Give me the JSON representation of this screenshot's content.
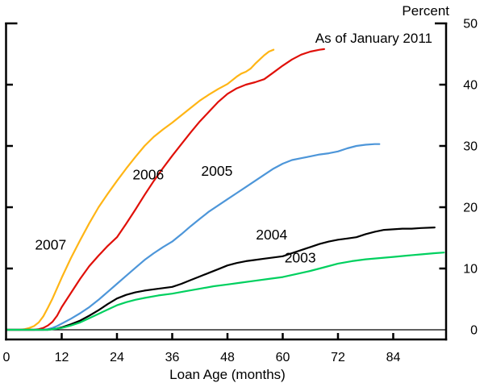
{
  "chart_data": {
    "type": "line",
    "title": "",
    "annotation": "As of January 2011",
    "ylabel": "Percent",
    "xlabel": "Loan Age (months)",
    "xlim": [
      0,
      95.5
    ],
    "ylim": [
      -1.6,
      50
    ],
    "x_ticks": [
      0,
      12,
      24,
      36,
      48,
      60,
      72,
      84
    ],
    "y_ticks": [
      0,
      10,
      20,
      30,
      40,
      50
    ],
    "grid": false,
    "legend": "inline-colored-labels",
    "axis_color": "#000000",
    "series": [
      {
        "name": "2007",
        "color": "#FFB515",
        "label_pos": [
          9.6,
          13.9
        ],
        "points": [
          [
            0,
            0
          ],
          [
            3,
            0
          ],
          [
            4,
            0.1
          ],
          [
            5,
            0.3
          ],
          [
            6,
            0.6
          ],
          [
            7,
            1.2
          ],
          [
            8,
            2.2
          ],
          [
            9,
            3.6
          ],
          [
            10,
            5.1
          ],
          [
            11,
            6.8
          ],
          [
            12,
            8.5
          ],
          [
            14,
            11.7
          ],
          [
            16,
            14.6
          ],
          [
            18,
            17.4
          ],
          [
            20,
            20
          ],
          [
            22,
            22.2
          ],
          [
            24,
            24.3
          ],
          [
            26,
            26.3
          ],
          [
            28,
            28.2
          ],
          [
            30,
            30
          ],
          [
            32,
            31.5
          ],
          [
            34,
            32.7
          ],
          [
            36,
            33.8
          ],
          [
            38,
            35
          ],
          [
            40,
            36.2
          ],
          [
            42,
            37.4
          ],
          [
            44,
            38.4
          ],
          [
            46,
            39.3
          ],
          [
            48,
            40.1
          ],
          [
            50,
            41.3
          ],
          [
            51,
            41.8
          ],
          [
            52,
            42.1
          ],
          [
            53,
            42.6
          ],
          [
            54,
            43.4
          ],
          [
            55,
            44.1
          ],
          [
            56,
            44.8
          ],
          [
            57,
            45.4
          ],
          [
            58,
            45.7
          ]
        ]
      },
      {
        "name": "2006",
        "color": "#E01009",
        "label_pos": [
          30.8,
          25.3
        ],
        "points": [
          [
            0,
            0
          ],
          [
            6,
            0
          ],
          [
            7,
            0.1
          ],
          [
            8,
            0.3
          ],
          [
            9,
            0.7
          ],
          [
            10,
            1.3
          ],
          [
            11,
            2.3
          ],
          [
            12,
            3.7
          ],
          [
            14,
            6
          ],
          [
            16,
            8.3
          ],
          [
            18,
            10.4
          ],
          [
            20,
            12.1
          ],
          [
            22,
            13.7
          ],
          [
            24,
            15.1
          ],
          [
            26,
            17.3
          ],
          [
            28,
            19.6
          ],
          [
            30,
            22
          ],
          [
            32,
            24.3
          ],
          [
            34,
            26.4
          ],
          [
            36,
            28.4
          ],
          [
            38,
            30.3
          ],
          [
            40,
            32.2
          ],
          [
            42,
            34
          ],
          [
            44,
            35.6
          ],
          [
            46,
            37.2
          ],
          [
            48,
            38.5
          ],
          [
            50,
            39.4
          ],
          [
            52,
            40
          ],
          [
            54,
            40.4
          ],
          [
            56,
            40.9
          ],
          [
            58,
            42
          ],
          [
            60,
            43.1
          ],
          [
            62,
            44.1
          ],
          [
            64,
            44.9
          ],
          [
            66,
            45.4
          ],
          [
            68,
            45.7
          ],
          [
            69,
            45.8
          ]
        ]
      },
      {
        "name": "2005",
        "color": "#4D96D9",
        "label_pos": [
          45.7,
          25.9
        ],
        "points": [
          [
            0,
            0
          ],
          [
            8,
            0
          ],
          [
            9,
            0.1
          ],
          [
            10,
            0.3
          ],
          [
            11,
            0.6
          ],
          [
            12,
            1
          ],
          [
            14,
            1.8
          ],
          [
            16,
            2.7
          ],
          [
            18,
            3.7
          ],
          [
            20,
            4.9
          ],
          [
            22,
            6.2
          ],
          [
            24,
            7.5
          ],
          [
            26,
            8.8
          ],
          [
            28,
            10.1
          ],
          [
            30,
            11.4
          ],
          [
            32,
            12.5
          ],
          [
            34,
            13.5
          ],
          [
            36,
            14.4
          ],
          [
            38,
            15.6
          ],
          [
            40,
            16.9
          ],
          [
            42,
            18.1
          ],
          [
            44,
            19.3
          ],
          [
            46,
            20.3
          ],
          [
            48,
            21.3
          ],
          [
            50,
            22.3
          ],
          [
            52,
            23.3
          ],
          [
            54,
            24.3
          ],
          [
            56,
            25.3
          ],
          [
            58,
            26.3
          ],
          [
            60,
            27.1
          ],
          [
            62,
            27.7
          ],
          [
            64,
            28
          ],
          [
            66,
            28.3
          ],
          [
            68,
            28.6
          ],
          [
            70,
            28.8
          ],
          [
            72,
            29.1
          ],
          [
            74,
            29.6
          ],
          [
            76,
            30
          ],
          [
            78,
            30.2
          ],
          [
            80,
            30.3
          ],
          [
            81,
            30.3
          ]
        ]
      },
      {
        "name": "2004",
        "color": "#000000",
        "label_pos": [
          57.6,
          15.5
        ],
        "points": [
          [
            0,
            0
          ],
          [
            9,
            0
          ],
          [
            10,
            0.1
          ],
          [
            11,
            0.2
          ],
          [
            12,
            0.4
          ],
          [
            14,
            0.9
          ],
          [
            16,
            1.5
          ],
          [
            18,
            2.3
          ],
          [
            20,
            3.2
          ],
          [
            22,
            4.2
          ],
          [
            24,
            5.1
          ],
          [
            26,
            5.7
          ],
          [
            28,
            6.1
          ],
          [
            30,
            6.4
          ],
          [
            32,
            6.6
          ],
          [
            34,
            6.8
          ],
          [
            36,
            7
          ],
          [
            38,
            7.5
          ],
          [
            40,
            8.1
          ],
          [
            42,
            8.7
          ],
          [
            44,
            9.3
          ],
          [
            46,
            9.9
          ],
          [
            48,
            10.5
          ],
          [
            50,
            10.9
          ],
          [
            52,
            11.2
          ],
          [
            54,
            11.4
          ],
          [
            56,
            11.6
          ],
          [
            58,
            11.8
          ],
          [
            60,
            12
          ],
          [
            62,
            12.5
          ],
          [
            64,
            13
          ],
          [
            66,
            13.5
          ],
          [
            68,
            14
          ],
          [
            70,
            14.4
          ],
          [
            72,
            14.7
          ],
          [
            74,
            14.9
          ],
          [
            76,
            15.1
          ],
          [
            78,
            15.6
          ],
          [
            80,
            16
          ],
          [
            82,
            16.3
          ],
          [
            84,
            16.4
          ],
          [
            86,
            16.5
          ],
          [
            88,
            16.5
          ],
          [
            90,
            16.6
          ],
          [
            93,
            16.7
          ]
        ]
      },
      {
        "name": "2003",
        "color": "#00D05F",
        "label_pos": [
          63.8,
          11.8
        ],
        "points": [
          [
            0,
            0
          ],
          [
            9,
            0
          ],
          [
            11,
            0.2
          ],
          [
            12,
            0.3
          ],
          [
            14,
            0.7
          ],
          [
            16,
            1.2
          ],
          [
            18,
            1.9
          ],
          [
            20,
            2.6
          ],
          [
            22,
            3.3
          ],
          [
            24,
            4
          ],
          [
            26,
            4.5
          ],
          [
            28,
            4.9
          ],
          [
            30,
            5.2
          ],
          [
            33,
            5.6
          ],
          [
            36,
            5.9
          ],
          [
            39,
            6.3
          ],
          [
            42,
            6.7
          ],
          [
            45,
            7.1
          ],
          [
            48,
            7.4
          ],
          [
            51,
            7.7
          ],
          [
            54,
            8
          ],
          [
            57,
            8.3
          ],
          [
            60,
            8.6
          ],
          [
            63,
            9.1
          ],
          [
            66,
            9.6
          ],
          [
            69,
            10.2
          ],
          [
            72,
            10.8
          ],
          [
            75,
            11.2
          ],
          [
            78,
            11.5
          ],
          [
            81,
            11.7
          ],
          [
            84,
            11.9
          ],
          [
            87,
            12.1
          ],
          [
            90,
            12.3
          ],
          [
            93,
            12.5
          ],
          [
            95,
            12.6
          ]
        ]
      }
    ]
  }
}
